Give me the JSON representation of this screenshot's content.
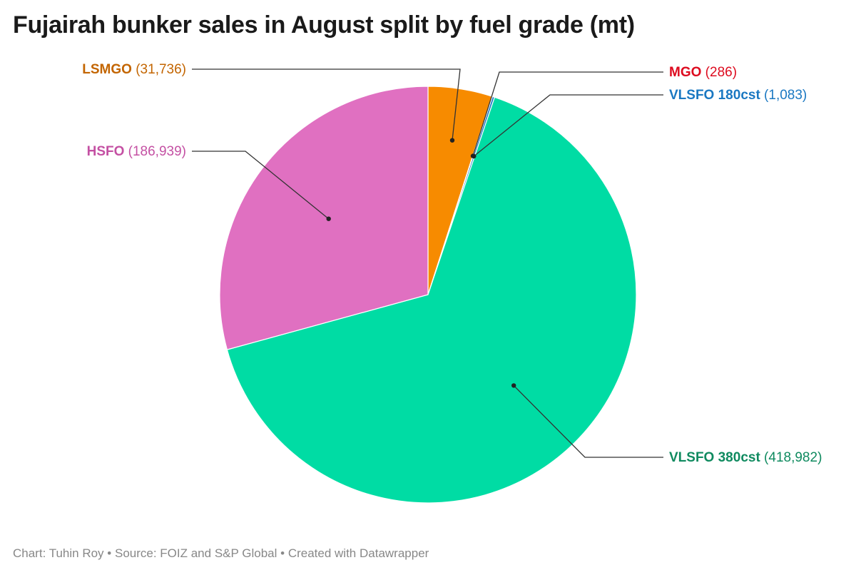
{
  "chart_data": {
    "type": "pie",
    "title": "Fujairah bunker sales in August split by fuel grade (mt)",
    "slices": [
      {
        "name": "LSMGO",
        "value": 31736,
        "value_label": "31,736",
        "color": "#f78b00",
        "label_color": "#c36500"
      },
      {
        "name": "MGO",
        "value": 286,
        "value_label": "286",
        "color": "#e5001c",
        "label_color": "#dd0b1f"
      },
      {
        "name": "VLSFO 180cst",
        "value": 1083,
        "value_label": "1,083",
        "color": "#1e7bc6",
        "label_color": "#1a78c2"
      },
      {
        "name": "VLSFO 380cst",
        "value": 418982,
        "value_label": "418,982",
        "color": "#00dca4",
        "label_color": "#0f8a5f"
      },
      {
        "name": "HSFO",
        "value": 186939,
        "value_label": "186,939",
        "color": "#e070c1",
        "label_color": "#c450a3"
      }
    ]
  },
  "footer": {
    "author_label": "Chart: Tuhin Roy",
    "source_label": "Source: FOIZ and S&P Global",
    "tool_label": "Created with Datawrapper",
    "separator": "•"
  }
}
